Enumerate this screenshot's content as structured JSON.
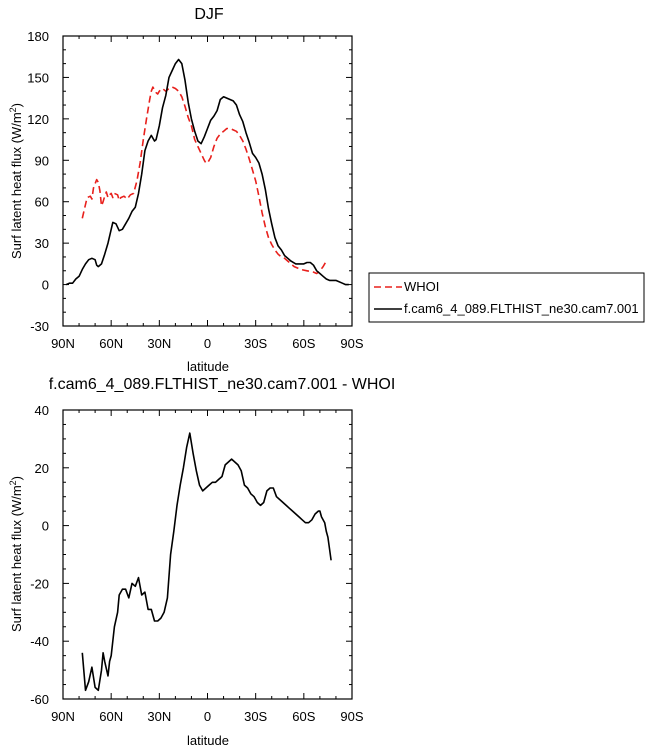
{
  "chart_data": [
    {
      "type": "line",
      "title": "DJF",
      "xlabel": "latitude",
      "ylabel": "Surf latent heat flux (W/m",
      "ylabel_sup": "2",
      "ylabel_close": ")",
      "xlim": [
        90,
        -90
      ],
      "ylim": [
        -30,
        180
      ],
      "xticks": [
        {
          "v": 90,
          "label": "90N"
        },
        {
          "v": 60,
          "label": "60N"
        },
        {
          "v": 30,
          "label": "30N"
        },
        {
          "v": 0,
          "label": "0"
        },
        {
          "v": -30,
          "label": "30S"
        },
        {
          "v": -60,
          "label": "60S"
        },
        {
          "v": -90,
          "label": "90S"
        }
      ],
      "yticks": [
        {
          "v": -30,
          "label": "-30"
        },
        {
          "v": 0,
          "label": "0"
        },
        {
          "v": 30,
          "label": "30"
        },
        {
          "v": 60,
          "label": "60"
        },
        {
          "v": 90,
          "label": "90"
        },
        {
          "v": 120,
          "label": "120"
        },
        {
          "v": 150,
          "label": "150"
        },
        {
          "v": 180,
          "label": "180"
        }
      ],
      "legend_position": "right",
      "series": [
        {
          "name": "WHOI",
          "color": "#e8201c",
          "dash": "dashed",
          "points": [
            [
              78,
              48
            ],
            [
              76,
              58
            ],
            [
              75,
              63
            ],
            [
              73,
              64
            ],
            [
              72,
              62
            ],
            [
              71,
              70
            ],
            [
              69,
              76
            ],
            [
              68,
              74
            ],
            [
              67,
              68
            ],
            [
              66,
              57
            ],
            [
              65,
              60
            ],
            [
              64,
              64
            ],
            [
              63,
              67
            ],
            [
              62,
              63
            ],
            [
              61,
              65
            ],
            [
              60,
              66
            ],
            [
              59,
              63
            ],
            [
              58,
              66
            ],
            [
              56,
              65
            ],
            [
              55,
              61
            ],
            [
              54,
              63
            ],
            [
              52,
              64
            ],
            [
              50,
              62
            ],
            [
              48,
              65
            ],
            [
              46,
              66
            ],
            [
              44,
              75
            ],
            [
              42,
              88
            ],
            [
              40,
              105
            ],
            [
              38,
              120
            ],
            [
              36,
              134
            ],
            [
              35,
              140
            ],
            [
              34,
              143
            ],
            [
              33,
              141
            ],
            [
              32,
              139
            ],
            [
              31,
              138
            ],
            [
              30,
              140
            ],
            [
              28,
              142
            ],
            [
              26,
              140
            ],
            [
              24,
              142
            ],
            [
              22,
              143
            ],
            [
              20,
              142
            ],
            [
              18,
              140
            ],
            [
              16,
              136
            ],
            [
              14,
              129
            ],
            [
              12,
              121
            ],
            [
              10,
              115
            ],
            [
              8,
              105
            ],
            [
              6,
              100
            ],
            [
              4,
              95
            ],
            [
              2,
              90
            ],
            [
              1,
              88
            ],
            [
              0,
              88
            ],
            [
              -2,
              92
            ],
            [
              -4,
              100
            ],
            [
              -6,
              106
            ],
            [
              -8,
              109
            ],
            [
              -10,
              111
            ],
            [
              -12,
              113
            ],
            [
              -14,
              113
            ],
            [
              -16,
              112
            ],
            [
              -18,
              111
            ],
            [
              -20,
              108
            ],
            [
              -22,
              104
            ],
            [
              -24,
              98
            ],
            [
              -26,
              91
            ],
            [
              -28,
              83
            ],
            [
              -30,
              75
            ],
            [
              -32,
              64
            ],
            [
              -34,
              52
            ],
            [
              -36,
              42
            ],
            [
              -38,
              34
            ],
            [
              -40,
              29
            ],
            [
              -42,
              25
            ],
            [
              -44,
              22
            ],
            [
              -46,
              20
            ],
            [
              -48,
              19
            ],
            [
              -50,
              17
            ],
            [
              -54,
              13
            ],
            [
              -58,
              11
            ],
            [
              -62,
              10
            ],
            [
              -66,
              9
            ],
            [
              -68,
              8
            ],
            [
              -70,
              10
            ],
            [
              -72,
              13
            ],
            [
              -74,
              17
            ]
          ]
        },
        {
          "name": "f.cam6_4_089.FLTHIST_ne30.cam7.001",
          "color": "#000000",
          "dash": "solid",
          "points": [
            [
              88,
              0
            ],
            [
              86,
              1
            ],
            [
              84,
              1
            ],
            [
              82,
              4
            ],
            [
              80,
              6
            ],
            [
              78,
              11
            ],
            [
              76,
              15
            ],
            [
              74,
              18
            ],
            [
              72,
              19
            ],
            [
              70,
              18
            ],
            [
              69,
              14
            ],
            [
              68,
              13
            ],
            [
              66,
              15
            ],
            [
              64,
              22
            ],
            [
              62,
              30
            ],
            [
              60,
              40
            ],
            [
              59,
              45
            ],
            [
              57,
              44
            ],
            [
              55,
              39
            ],
            [
              53,
              40
            ],
            [
              51,
              44
            ],
            [
              49,
              48
            ],
            [
              47,
              53
            ],
            [
              45,
              56
            ],
            [
              43,
              66
            ],
            [
              41,
              80
            ],
            [
              39,
              97
            ],
            [
              37,
              104
            ],
            [
              35,
              108
            ],
            [
              33,
              104
            ],
            [
              32,
              105
            ],
            [
              30,
              115
            ],
            [
              28,
              128
            ],
            [
              26,
              137
            ],
            [
              24,
              150
            ],
            [
              22,
              155
            ],
            [
              20,
              160
            ],
            [
              18,
              163
            ],
            [
              16,
              160
            ],
            [
              14,
              148
            ],
            [
              12,
              132
            ],
            [
              10,
              120
            ],
            [
              8,
              111
            ],
            [
              6,
              104
            ],
            [
              4,
              102
            ],
            [
              2,
              107
            ],
            [
              0,
              113
            ],
            [
              -2,
              119
            ],
            [
              -4,
              122
            ],
            [
              -6,
              126
            ],
            [
              -8,
              134
            ],
            [
              -10,
              136
            ],
            [
              -12,
              135
            ],
            [
              -14,
              134
            ],
            [
              -16,
              133
            ],
            [
              -18,
              130
            ],
            [
              -20,
              123
            ],
            [
              -22,
              118
            ],
            [
              -24,
              110
            ],
            [
              -26,
              103
            ],
            [
              -28,
              95
            ],
            [
              -30,
              92
            ],
            [
              -32,
              88
            ],
            [
              -34,
              80
            ],
            [
              -36,
              69
            ],
            [
              -38,
              55
            ],
            [
              -40,
              44
            ],
            [
              -42,
              34
            ],
            [
              -44,
              28
            ],
            [
              -46,
              25
            ],
            [
              -48,
              21
            ],
            [
              -50,
              19
            ],
            [
              -52,
              17
            ],
            [
              -55,
              15
            ],
            [
              -58,
              15
            ],
            [
              -60,
              15
            ],
            [
              -62,
              16
            ],
            [
              -64,
              16
            ],
            [
              -66,
              14
            ],
            [
              -68,
              10
            ],
            [
              -70,
              8
            ],
            [
              -72,
              6
            ],
            [
              -74,
              4
            ],
            [
              -76,
              3
            ],
            [
              -80,
              3
            ],
            [
              -84,
              1
            ],
            [
              -86,
              0
            ],
            [
              -88,
              0
            ]
          ]
        }
      ]
    },
    {
      "type": "line",
      "title": "f.cam6_4_089.FLTHIST_ne30.cam7.001 - WHOI",
      "xlabel": "latitude",
      "ylabel": "Surf latent heat flux (W/m",
      "ylabel_sup": "2",
      "ylabel_close": ")",
      "xlim": [
        90,
        -90
      ],
      "ylim": [
        -60,
        40
      ],
      "xticks": [
        {
          "v": 90,
          "label": "90N"
        },
        {
          "v": 60,
          "label": "60N"
        },
        {
          "v": 30,
          "label": "30N"
        },
        {
          "v": 0,
          "label": "0"
        },
        {
          "v": -30,
          "label": "30S"
        },
        {
          "v": -60,
          "label": "60S"
        },
        {
          "v": -90,
          "label": "90S"
        }
      ],
      "yticks": [
        {
          "v": -60,
          "label": "-60"
        },
        {
          "v": -40,
          "label": "-40"
        },
        {
          "v": -20,
          "label": "-20"
        },
        {
          "v": 0,
          "label": "0"
        },
        {
          "v": 20,
          "label": "20"
        },
        {
          "v": 40,
          "label": "40"
        }
      ],
      "series": [
        {
          "name": "f.cam6_4_089.FLTHIST_ne30.cam7.001 - WHOI",
          "color": "#000000",
          "dash": "solid",
          "points": [
            [
              78,
              -44
            ],
            [
              76,
              -57
            ],
            [
              74,
              -54
            ],
            [
              72,
              -49
            ],
            [
              70,
              -56
            ],
            [
              68,
              -57
            ],
            [
              66,
              -50
            ],
            [
              65,
              -44
            ],
            [
              64,
              -47
            ],
            [
              62,
              -52
            ],
            [
              61,
              -47
            ],
            [
              60,
              -45
            ],
            [
              58,
              -35
            ],
            [
              56,
              -30
            ],
            [
              55,
              -24
            ],
            [
              53,
              -22
            ],
            [
              51,
              -22
            ],
            [
              49,
              -25
            ],
            [
              47,
              -20
            ],
            [
              45,
              -21
            ],
            [
              43,
              -18
            ],
            [
              41,
              -24
            ],
            [
              39,
              -23
            ],
            [
              37,
              -29
            ],
            [
              35,
              -29
            ],
            [
              33,
              -33
            ],
            [
              31,
              -33
            ],
            [
              29,
              -32
            ],
            [
              27,
              -30
            ],
            [
              25,
              -25
            ],
            [
              23,
              -10
            ],
            [
              21,
              -2
            ],
            [
              19,
              7
            ],
            [
              17,
              14
            ],
            [
              15,
              20
            ],
            [
              13,
              27
            ],
            [
              11,
              32
            ],
            [
              9,
              25
            ],
            [
              7,
              19
            ],
            [
              5,
              14
            ],
            [
              3,
              12
            ],
            [
              1,
              13
            ],
            [
              -1,
              14
            ],
            [
              -3,
              15
            ],
            [
              -5,
              15
            ],
            [
              -7,
              16
            ],
            [
              -9,
              17
            ],
            [
              -11,
              21
            ],
            [
              -13,
              22
            ],
            [
              -15,
              23
            ],
            [
              -17,
              22
            ],
            [
              -19,
              21
            ],
            [
              -21,
              19
            ],
            [
              -23,
              14
            ],
            [
              -25,
              13
            ],
            [
              -27,
              11
            ],
            [
              -29,
              10
            ],
            [
              -31,
              8
            ],
            [
              -33,
              7
            ],
            [
              -35,
              8
            ],
            [
              -37,
              12
            ],
            [
              -39,
              13
            ],
            [
              -41,
              13
            ],
            [
              -43,
              10
            ],
            [
              -45,
              9
            ],
            [
              -47,
              8
            ],
            [
              -49,
              7
            ],
            [
              -51,
              6
            ],
            [
              -53,
              5
            ],
            [
              -55,
              4
            ],
            [
              -57,
              3
            ],
            [
              -59,
              2
            ],
            [
              -61,
              1
            ],
            [
              -63,
              1
            ],
            [
              -65,
              2
            ],
            [
              -67,
              4
            ],
            [
              -69,
              5
            ],
            [
              -70,
              5
            ],
            [
              -71,
              3
            ],
            [
              -73,
              1
            ],
            [
              -74,
              -2
            ],
            [
              -75,
              -4
            ],
            [
              -76,
              -8
            ],
            [
              -77,
              -12
            ]
          ]
        }
      ]
    }
  ]
}
